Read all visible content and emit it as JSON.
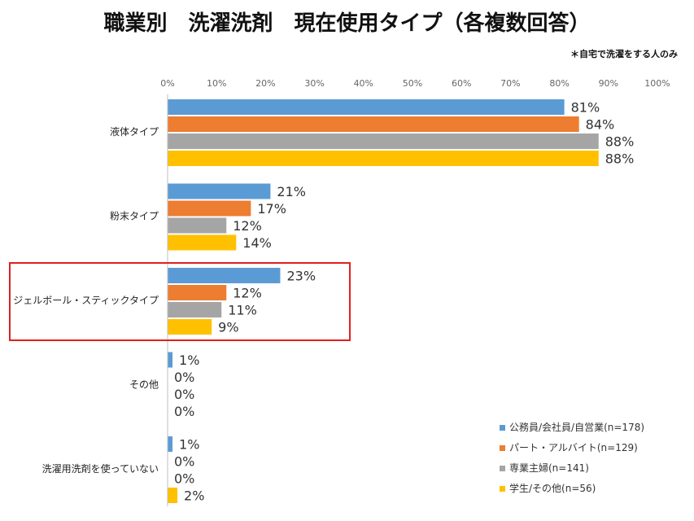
{
  "title": "職業別　洗濯洗剤　現在使用タイプ（各複数回答）",
  "note": "＊自宅で洗濯をする人のみ",
  "colors": {
    "series": [
      "#5B9BD5",
      "#ED7D31",
      "#A5A5A5",
      "#FFC000"
    ],
    "highlight": "#E02020",
    "axis": "#bfbfbf"
  },
  "chart_data": {
    "type": "bar",
    "orientation": "horizontal",
    "title": "職業別　洗濯洗剤　現在使用タイプ（各複数回答）",
    "categories": [
      "液体タイプ",
      "粉末タイプ",
      "ジェルボール・スティックタイプ",
      "その他",
      "洗濯用洗剤を使っていない"
    ],
    "series": [
      {
        "name": "公務員/会社員/自営業(n=178)",
        "values": [
          81,
          21,
          23,
          1,
          1
        ],
        "labels": [
          "81%",
          "21%",
          "23%",
          "1%",
          "1%"
        ]
      },
      {
        "name": "パート・アルバイト(n=129)",
        "values": [
          84,
          17,
          12,
          0,
          0
        ],
        "labels": [
          "84%",
          "17%",
          "12%",
          "0%",
          "0%"
        ]
      },
      {
        "name": "専業主婦(n=141)",
        "values": [
          88,
          12,
          11,
          0,
          0
        ],
        "labels": [
          "88%",
          "12%",
          "11%",
          "0%",
          "0%"
        ]
      },
      {
        "name": "学生/その他(n=56)",
        "values": [
          88,
          14,
          9,
          0,
          2
        ],
        "labels": [
          "88%",
          "14%",
          "9%",
          "0%",
          "2%"
        ]
      }
    ],
    "xticks": [
      "0%",
      "10%",
      "20%",
      "30%",
      "40%",
      "50%",
      "60%",
      "70%",
      "80%",
      "90%",
      "100%"
    ],
    "xlim": [
      0,
      100
    ],
    "legend_position": "bottom-right",
    "highlighted_category": "ジェルボール・スティックタイプ",
    "grid": false
  }
}
